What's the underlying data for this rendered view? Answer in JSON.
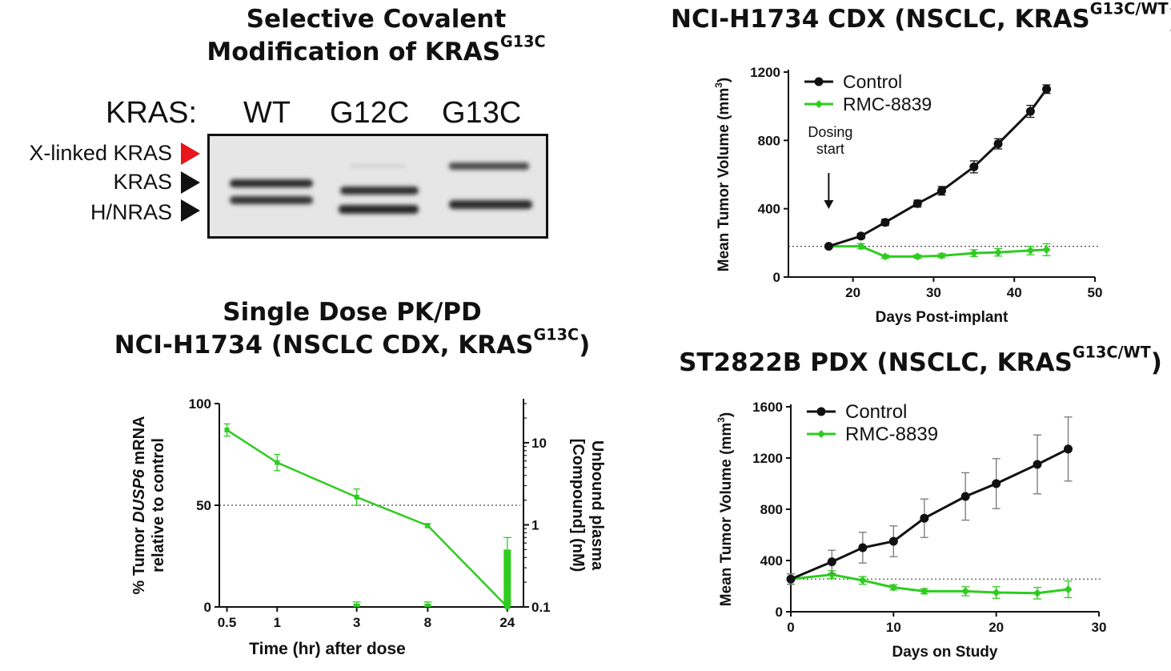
{
  "titles": {
    "blot_l1": "Selective Covalent",
    "blot_l2": "Modification of KRAS",
    "blot_l2_sup": "G13C",
    "pkpd_l1": "Single Dose PK/PD",
    "pkpd_l2": "NCI-H1734 (NSCLC CDX, KRAS",
    "pkpd_l2_sup": "G13C",
    "pkpd_l2_end": ")",
    "cdx": "NCI-H1734 CDX (NSCLC, KRAS",
    "cdx_sup": "G13C/WT",
    "cdx_end": ")",
    "pdx": "ST2822B PDX (NSCLC, KRAS",
    "pdx_sup": "G13C/WT",
    "pdx_end": ")"
  },
  "blot": {
    "kras_label": "KRAS:",
    "lanes": [
      "WT",
      "G12C",
      "G13C"
    ],
    "band_labels": [
      "X-linked KRAS",
      "KRAS",
      "H/NRAS"
    ],
    "arrow_colors": [
      "#e8151b",
      "#111111",
      "#111111"
    ]
  },
  "colors": {
    "green": "#2ecc1f",
    "black": "#111111"
  },
  "chart_data": [
    {
      "type": "line",
      "title": "NCI-H1734 CDX (NSCLC, KRAS G13C/WT)",
      "xlabel": "Days Post-implant",
      "ylabel": "Mean Tumor Volume (mm3)",
      "xlim": [
        12,
        50
      ],
      "ylim": [
        0,
        1200
      ],
      "xticks": [
        20,
        30,
        40,
        50
      ],
      "yticks": [
        0,
        400,
        800,
        1200
      ],
      "reference_line_y": 180,
      "annotation": {
        "text_lines": [
          "Dosing",
          "start"
        ],
        "x": 17
      },
      "legend": "top-left",
      "series": [
        {
          "name": "Control",
          "color": "#111111",
          "x": [
            17,
            21,
            24,
            28,
            31,
            35,
            38,
            42,
            44
          ],
          "y": [
            180,
            240,
            320,
            430,
            505,
            645,
            780,
            970,
            1100
          ],
          "err": [
            10,
            15,
            18,
            20,
            25,
            35,
            30,
            35,
            25
          ]
        },
        {
          "name": "RMC-8839",
          "color": "#2ecc1f",
          "x": [
            17,
            21,
            24,
            28,
            31,
            35,
            38,
            42,
            44
          ],
          "y": [
            180,
            180,
            120,
            120,
            125,
            140,
            145,
            155,
            160
          ],
          "err": [
            8,
            15,
            10,
            10,
            12,
            20,
            22,
            25,
            35
          ]
        }
      ]
    },
    {
      "type": "line",
      "title": "ST2822B PDX (NSCLC, KRAS G13C/WT)",
      "xlabel": "Days on Study",
      "ylabel": "Mean Tumor Volume (mm3)",
      "xlim": [
        0,
        30
      ],
      "ylim": [
        0,
        1600
      ],
      "xticks": [
        0,
        10,
        20,
        30
      ],
      "yticks": [
        0,
        400,
        800,
        1200,
        1600
      ],
      "reference_line_y": 255,
      "legend": "top-left",
      "series": [
        {
          "name": "Control",
          "color": "#111111",
          "x": [
            0,
            4,
            7,
            10,
            13,
            17,
            20,
            24,
            27
          ],
          "y": [
            255,
            390,
            500,
            550,
            730,
            900,
            1000,
            1150,
            1270
          ],
          "err": [
            40,
            90,
            120,
            120,
            150,
            185,
            195,
            230,
            250
          ]
        },
        {
          "name": "RMC-8839",
          "color": "#2ecc1f",
          "x": [
            0,
            4,
            7,
            10,
            13,
            17,
            20,
            24,
            27
          ],
          "y": [
            255,
            290,
            245,
            190,
            160,
            160,
            150,
            145,
            175
          ],
          "err": [
            40,
            30,
            30,
            20,
            20,
            35,
            45,
            45,
            65
          ]
        }
      ]
    },
    {
      "type": "line",
      "title": "Single Dose PK/PD NCI-H1734 (NSCLC CDX, KRAS G13C)",
      "xlabel": "Time (hr) after dose",
      "ylabel": "% Tumor DUSP6 mRNA relative to control",
      "y2label": "Unbound plasma [Compound] (nM)",
      "xscale": "log",
      "xlim": [
        0.45,
        30
      ],
      "xticks": [
        0.5,
        1,
        3,
        8,
        24
      ],
      "xticklabels": [
        "0.5",
        "1",
        "3",
        "8",
        "24"
      ],
      "ylim": [
        0,
        100
      ],
      "yticks": [
        0,
        50,
        100
      ],
      "y2scale": "log",
      "y2lim": [
        0.1,
        30
      ],
      "y2ticks": [
        0.1,
        1,
        10
      ],
      "y2ticklabels": [
        "0.1",
        "1",
        "10"
      ],
      "reference_line_y": 50,
      "series": [
        {
          "name": "% DUSP6 mRNA",
          "type": "line",
          "axis": "y",
          "color": "#2ecc1f",
          "x": [
            0.5,
            1,
            3,
            8,
            24
          ],
          "y": [
            87,
            71,
            54,
            40,
            0
          ],
          "err": [
            3,
            4,
            4,
            1,
            0
          ]
        },
        {
          "name": "Unbound plasma concentration",
          "type": "bar",
          "axis": "y2",
          "color": "#2ecc1f",
          "x": [
            3,
            8,
            24
          ],
          "y": [
            0.11,
            0.11,
            0.5
          ],
          "err": [
            0.005,
            0.005,
            0.2
          ]
        }
      ]
    }
  ]
}
